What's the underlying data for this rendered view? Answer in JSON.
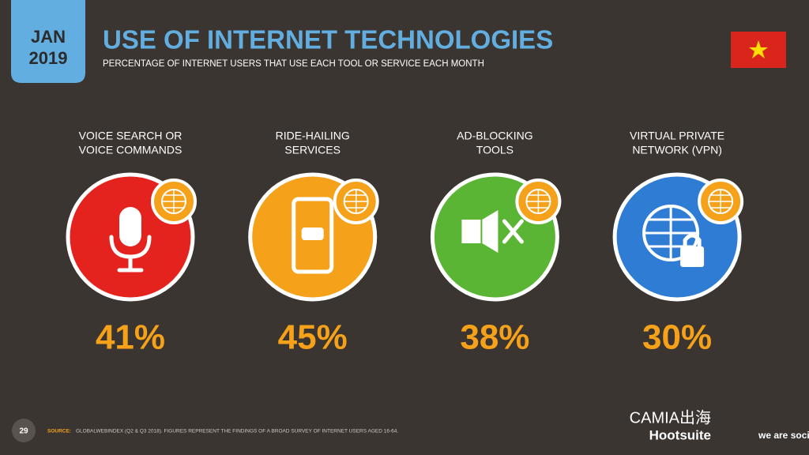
{
  "header": {
    "badge": [
      "JAN",
      "2019"
    ],
    "title": "USE OF INTERNET TECHNOLOGIES",
    "subtitle": "PERCENTAGE OF INTERNET USERS THAT USE EACH TOOL OR SERVICE EACH MONTH"
  },
  "items": [
    {
      "label": [
        "VOICE SEARCH OR",
        "VOICE COMMANDS"
      ],
      "value": "41%",
      "color": "#e4231f"
    },
    {
      "label": [
        "RIDE-HAILING",
        "SERVICES"
      ],
      "value": "45%",
      "color": "#f5a11a"
    },
    {
      "label": [
        "AD-BLOCKING",
        "TOOLS"
      ],
      "value": "38%",
      "color": "#5bb535"
    },
    {
      "label": [
        "VIRTUAL PRIVATE",
        "NETWORK (VPN)"
      ],
      "value": "30%",
      "color": "#2f7cd4"
    }
  ],
  "footer": {
    "page": "29",
    "source_label": "SOURCE:",
    "source": "GLOBALWEBINDEX (Q2 & Q3 2018). FIGURES REPRESENT THE FINDINGS OF A BROAD SURVEY OF INTERNET USERS AGED 16-64.",
    "logos": [
      "Hootsuite",
      "we are social"
    ],
    "watermark": "CAMIA出海"
  }
}
